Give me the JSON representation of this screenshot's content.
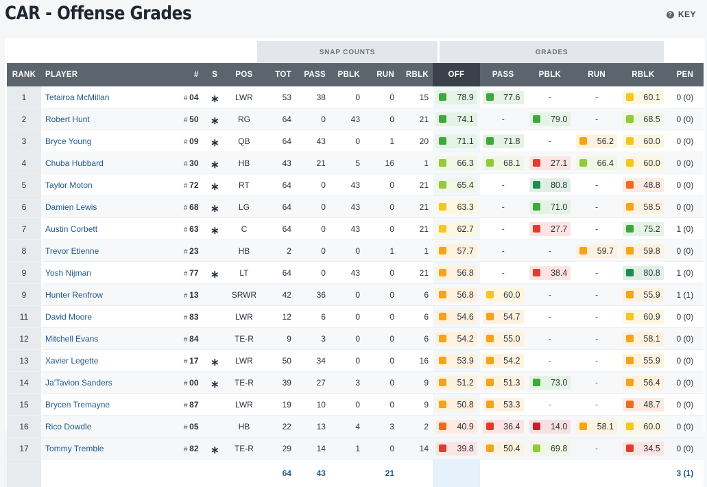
{
  "page_title": "CAR - Offense Grades",
  "key_label": "KEY",
  "groups": {
    "snap": "SNAP COUNTS",
    "grades": "GRADES"
  },
  "columns": [
    "RANK",
    "PLAYER",
    "#",
    "S",
    "POS",
    "TOT",
    "PASS",
    "PBLK",
    "RUN",
    "RBLK",
    "OFF",
    "PASS",
    "PBLK",
    "RUN",
    "RBLK",
    "PEN"
  ],
  "colors": {
    "dark_green": "#1e8c4e",
    "green": "#3fa83c",
    "light_green": "#94c83d",
    "yellow": "#f2c81f",
    "orange": "#f5a31a",
    "dark_orange": "#ef6a1f",
    "red": "#e23b2d",
    "dark_red": "#c4202c"
  },
  "rows": [
    {
      "rank": "1",
      "name": "Tetairoa McMillan",
      "num": "04",
      "starter": true,
      "pos": "LWR",
      "tot": "53",
      "pass": "38",
      "pblk": "0",
      "run": "0",
      "rblk": "15",
      "off": "78.9",
      "g_pass": "77.6",
      "g_pblk": "-",
      "g_run": "-",
      "g_rblk": "60.1",
      "pen": "0 (0)"
    },
    {
      "rank": "2",
      "name": "Robert Hunt",
      "num": "50",
      "starter": true,
      "pos": "RG",
      "tot": "64",
      "pass": "0",
      "pblk": "43",
      "run": "0",
      "rblk": "21",
      "off": "74.1",
      "g_pass": "-",
      "g_pblk": "79.0",
      "g_run": "-",
      "g_rblk": "68.5",
      "pen": "0 (0)"
    },
    {
      "rank": "3",
      "name": "Bryce Young",
      "num": "09",
      "starter": true,
      "pos": "QB",
      "tot": "64",
      "pass": "43",
      "pblk": "0",
      "run": "1",
      "rblk": "20",
      "off": "71.1",
      "g_pass": "71.8",
      "g_pblk": "-",
      "g_run": "56.2",
      "g_rblk": "60.0",
      "pen": "0 (0)"
    },
    {
      "rank": "4",
      "name": "Chuba Hubbard",
      "num": "30",
      "starter": true,
      "pos": "HB",
      "tot": "43",
      "pass": "21",
      "pblk": "5",
      "run": "16",
      "rblk": "1",
      "off": "66.3",
      "g_pass": "68.1",
      "g_pblk": "27.1",
      "g_run": "66.4",
      "g_rblk": "60.0",
      "pen": "0 (0)"
    },
    {
      "rank": "5",
      "name": "Taylor Moton",
      "num": "72",
      "starter": true,
      "pos": "RT",
      "tot": "64",
      "pass": "0",
      "pblk": "43",
      "run": "0",
      "rblk": "21",
      "off": "65.4",
      "g_pass": "-",
      "g_pblk": "80.8",
      "g_run": "-",
      "g_rblk": "48.8",
      "pen": "0 (0)"
    },
    {
      "rank": "6",
      "name": "Damien Lewis",
      "num": "68",
      "starter": true,
      "pos": "LG",
      "tot": "64",
      "pass": "0",
      "pblk": "43",
      "run": "0",
      "rblk": "21",
      "off": "63.3",
      "g_pass": "-",
      "g_pblk": "71.0",
      "g_run": "-",
      "g_rblk": "58.5",
      "pen": "0 (0)"
    },
    {
      "rank": "7",
      "name": "Austin Corbett",
      "num": "63",
      "starter": true,
      "pos": "C",
      "tot": "64",
      "pass": "0",
      "pblk": "43",
      "run": "0",
      "rblk": "21",
      "off": "62.7",
      "g_pass": "-",
      "g_pblk": "27.7",
      "g_run": "-",
      "g_rblk": "75.2",
      "pen": "1 (0)"
    },
    {
      "rank": "8",
      "name": "Trevor Etienne",
      "num": "23",
      "starter": false,
      "pos": "HB",
      "tot": "2",
      "pass": "0",
      "pblk": "0",
      "run": "1",
      "rblk": "1",
      "off": "57.7",
      "g_pass": "-",
      "g_pblk": "-",
      "g_run": "59.7",
      "g_rblk": "59.8",
      "pen": "0 (0)"
    },
    {
      "rank": "9",
      "name": "Yosh Nijman",
      "num": "77",
      "starter": true,
      "pos": "LT",
      "tot": "64",
      "pass": "0",
      "pblk": "43",
      "run": "0",
      "rblk": "21",
      "off": "56.8",
      "g_pass": "-",
      "g_pblk": "38.4",
      "g_run": "-",
      "g_rblk": "80.8",
      "pen": "1 (0)"
    },
    {
      "rank": "9",
      "name": "Hunter Renfrow",
      "num": "13",
      "starter": false,
      "pos": "SRWR",
      "tot": "42",
      "pass": "36",
      "pblk": "0",
      "run": "0",
      "rblk": "6",
      "off": "56.8",
      "g_pass": "60.0",
      "g_pblk": "-",
      "g_run": "-",
      "g_rblk": "55.9",
      "pen": "1 (1)"
    },
    {
      "rank": "11",
      "name": "David Moore",
      "num": "83",
      "starter": false,
      "pos": "LWR",
      "tot": "12",
      "pass": "6",
      "pblk": "0",
      "run": "0",
      "rblk": "6",
      "off": "54.6",
      "g_pass": "54.7",
      "g_pblk": "-",
      "g_run": "-",
      "g_rblk": "60.9",
      "pen": "0 (0)"
    },
    {
      "rank": "12",
      "name": "Mitchell Evans",
      "num": "84",
      "starter": false,
      "pos": "TE-R",
      "tot": "9",
      "pass": "3",
      "pblk": "0",
      "run": "0",
      "rblk": "6",
      "off": "54.2",
      "g_pass": "55.0",
      "g_pblk": "-",
      "g_run": "-",
      "g_rblk": "58.1",
      "pen": "0 (0)"
    },
    {
      "rank": "13",
      "name": "Xavier Legette",
      "num": "17",
      "starter": true,
      "pos": "LWR",
      "tot": "50",
      "pass": "34",
      "pblk": "0",
      "run": "0",
      "rblk": "16",
      "off": "53.9",
      "g_pass": "54.2",
      "g_pblk": "-",
      "g_run": "-",
      "g_rblk": "55.9",
      "pen": "0 (0)"
    },
    {
      "rank": "14",
      "name": "Ja'Tavion Sanders",
      "num": "00",
      "starter": true,
      "pos": "TE-R",
      "tot": "39",
      "pass": "27",
      "pblk": "3",
      "run": "0",
      "rblk": "9",
      "off": "51.2",
      "g_pass": "51.3",
      "g_pblk": "73.0",
      "g_run": "-",
      "g_rblk": "56.4",
      "pen": "0 (0)"
    },
    {
      "rank": "15",
      "name": "Brycen Tremayne",
      "num": "87",
      "starter": false,
      "pos": "LWR",
      "tot": "19",
      "pass": "10",
      "pblk": "0",
      "run": "0",
      "rblk": "9",
      "off": "50.8",
      "g_pass": "53.3",
      "g_pblk": "-",
      "g_run": "-",
      "g_rblk": "48.7",
      "pen": "0 (0)"
    },
    {
      "rank": "16",
      "name": "Rico Dowdle",
      "num": "05",
      "starter": false,
      "pos": "HB",
      "tot": "22",
      "pass": "13",
      "pblk": "4",
      "run": "3",
      "rblk": "2",
      "off": "40.9",
      "g_pass": "36.4",
      "g_pblk": "14.0",
      "g_run": "58.1",
      "g_rblk": "60.0",
      "pen": "0 (0)"
    },
    {
      "rank": "17",
      "name": "Tommy Tremble",
      "num": "82",
      "starter": true,
      "pos": "TE-R",
      "tot": "29",
      "pass": "14",
      "pblk": "1",
      "run": "0",
      "rblk": "14",
      "off": "39.8",
      "g_pass": "50.4",
      "g_pblk": "69.8",
      "g_run": "-",
      "g_rblk": "34.5",
      "pen": "0 (0)"
    }
  ],
  "totals": {
    "tot": "64",
    "pass": "43",
    "run": "21",
    "pen": "3 (1)"
  }
}
